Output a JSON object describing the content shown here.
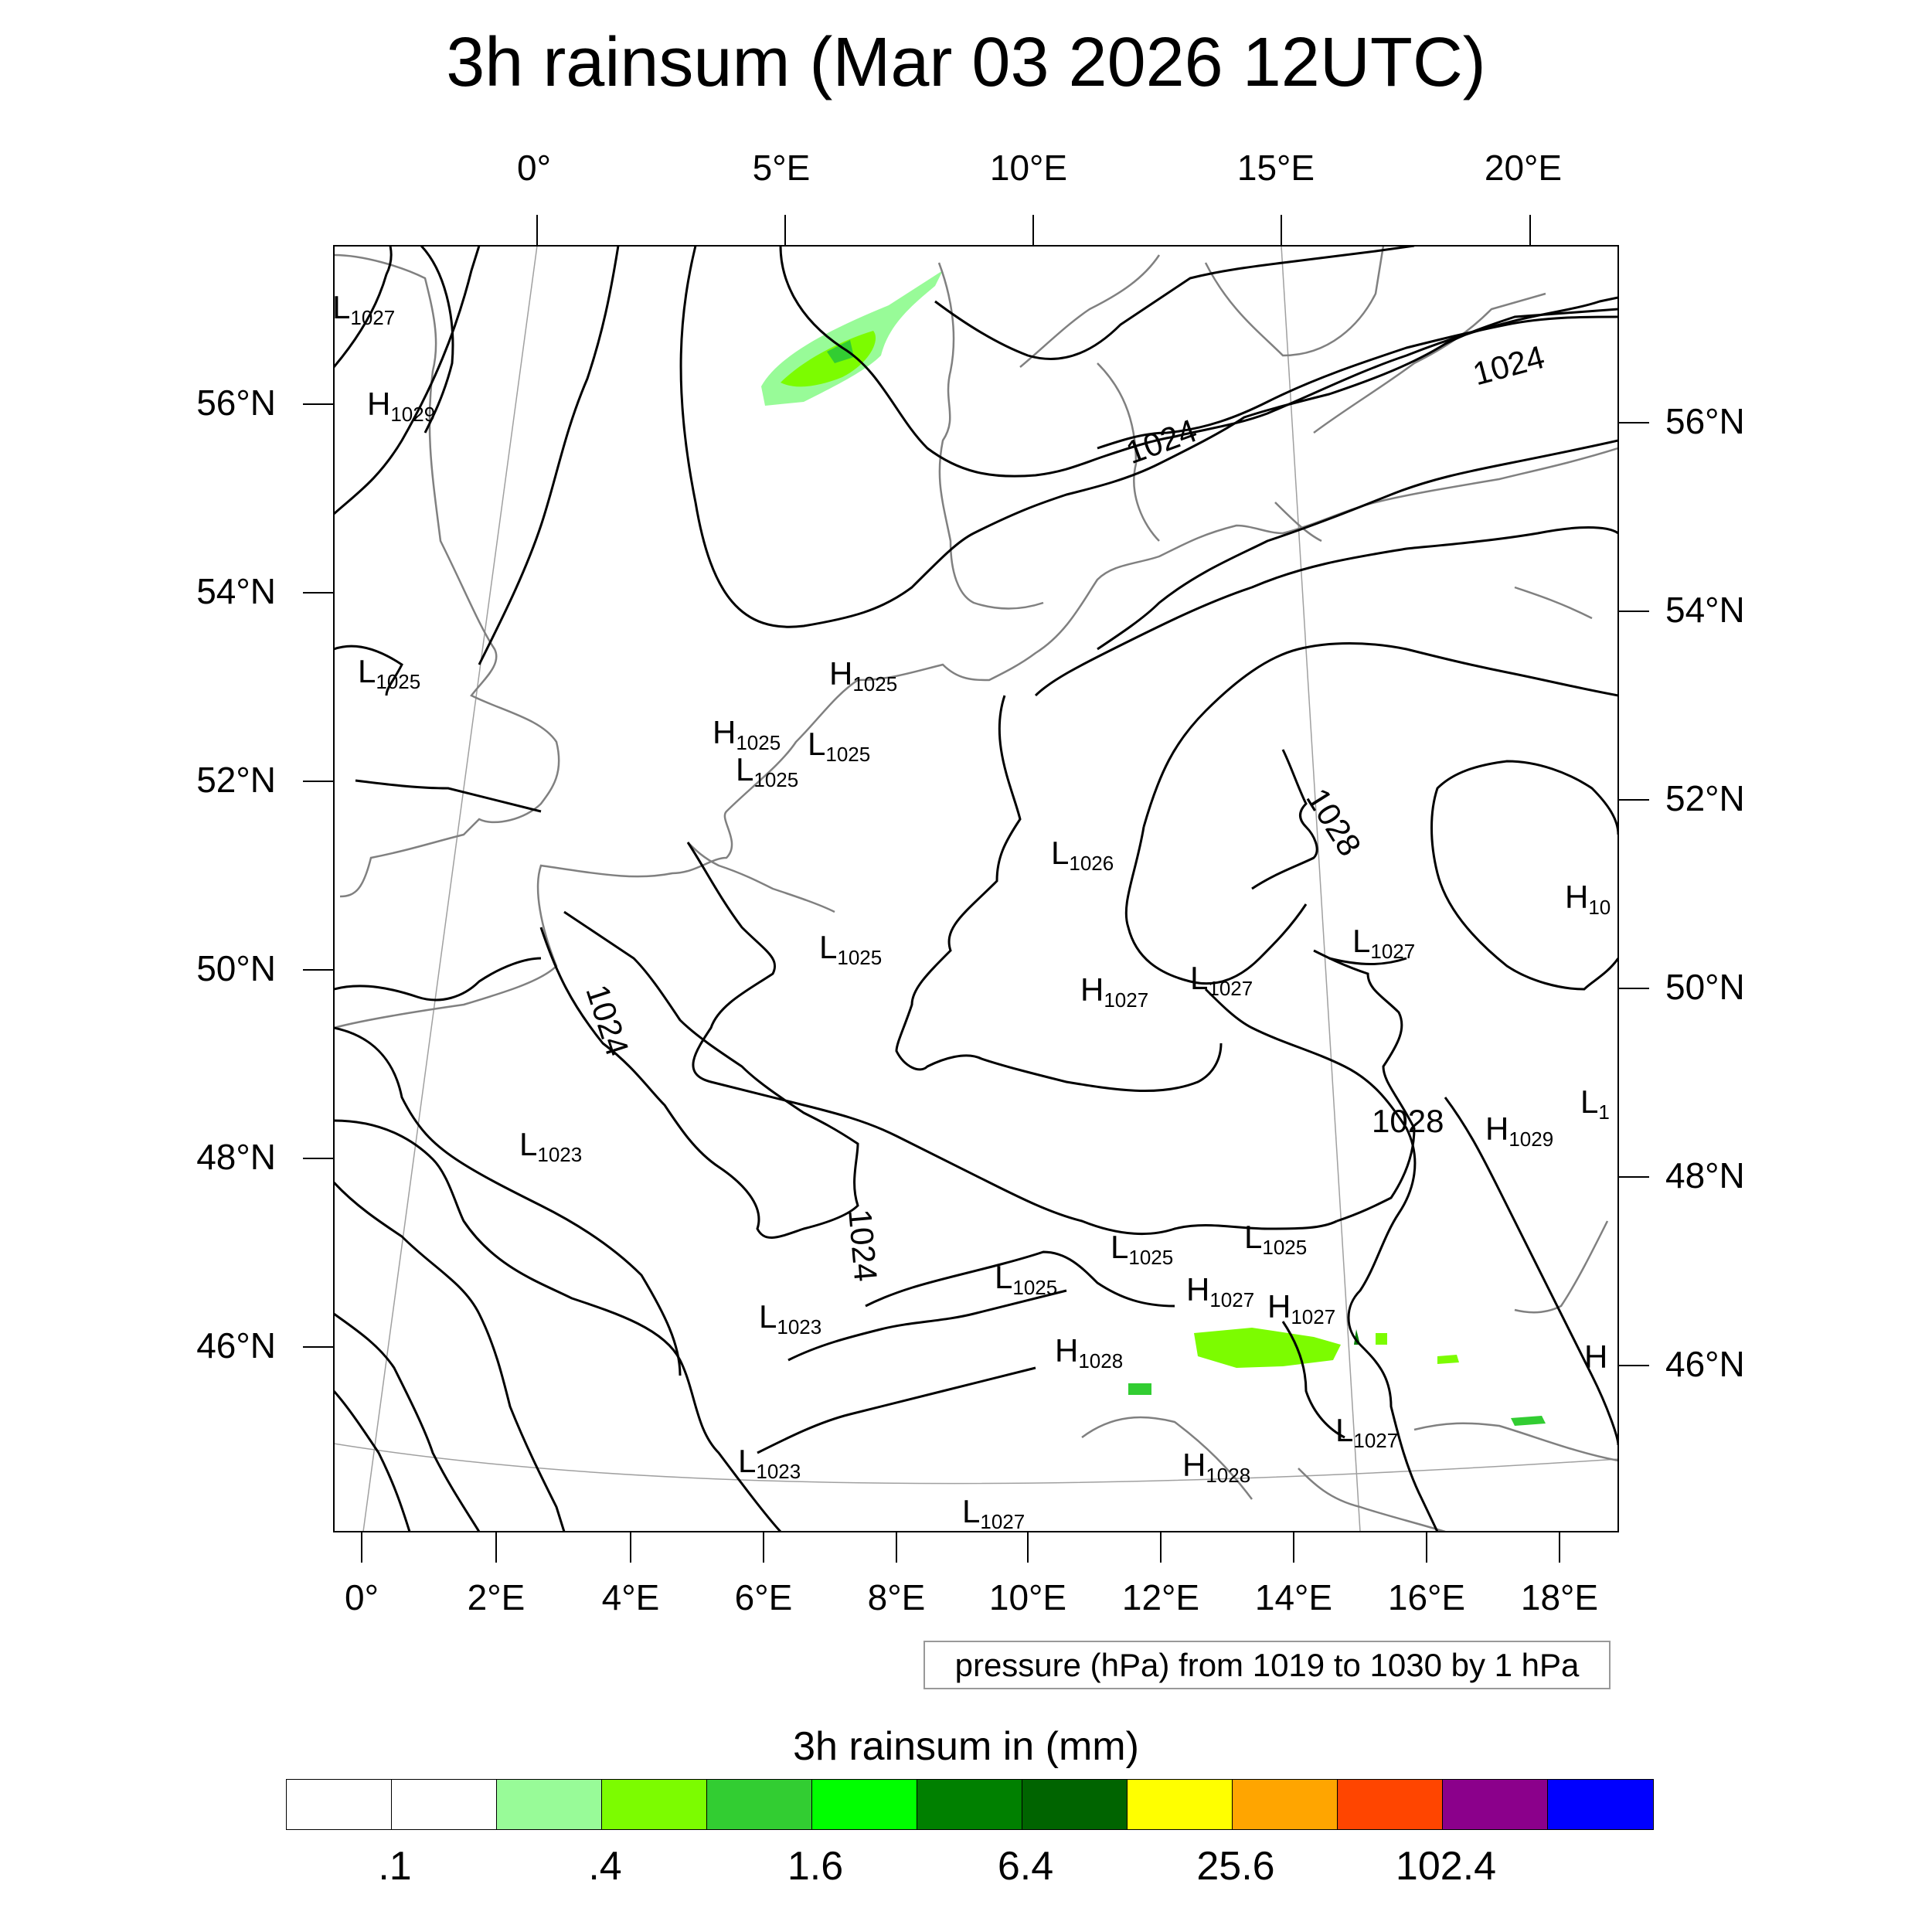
{
  "title": "3h rainsum (Mar 03 2026 12UTC)",
  "map": {
    "top_lon_labels": [
      "0°",
      "5°E",
      "10°E",
      "15°E",
      "20°E"
    ],
    "bottom_lon_labels": [
      "0°",
      "2°E",
      "4°E",
      "6°E",
      "8°E",
      "10°E",
      "12°E",
      "14°E",
      "16°E",
      "18°E"
    ],
    "left_lat_labels": [
      "56°N",
      "54°N",
      "52°N",
      "50°N",
      "48°N",
      "46°N"
    ],
    "right_lat_labels": [
      "56°N",
      "54°N",
      "52°N",
      "50°N",
      "48°N",
      "46°N"
    ],
    "isobar_labels": [
      "1024",
      "1024",
      "1024",
      "1024",
      "1028",
      "1028"
    ],
    "pressure_centers": [
      {
        "type": "L",
        "value": "1027"
      },
      {
        "type": "H",
        "value": "1029"
      },
      {
        "type": "L",
        "value": "1025"
      },
      {
        "type": "H",
        "value": "1025"
      },
      {
        "type": "H",
        "value": "1025"
      },
      {
        "type": "L",
        "value": "1025"
      },
      {
        "type": "L",
        "value": "1025"
      },
      {
        "type": "L",
        "value": "1026"
      },
      {
        "type": "L",
        "value": "1025"
      },
      {
        "type": "H",
        "value": "1027"
      },
      {
        "type": "L",
        "value": "1027"
      },
      {
        "type": "L",
        "value": "1027"
      },
      {
        "type": "H",
        "value": "10"
      },
      {
        "type": "L",
        "value": "1023"
      },
      {
        "type": "H",
        "value": "1029"
      },
      {
        "type": "L",
        "value": "1"
      },
      {
        "type": "L",
        "value": "1025"
      },
      {
        "type": "L",
        "value": "1025"
      },
      {
        "type": "L",
        "value": "1025"
      },
      {
        "type": "H",
        "value": "1027"
      },
      {
        "type": "H",
        "value": "1027"
      },
      {
        "type": "L",
        "value": "1023"
      },
      {
        "type": "H",
        "value": "1028"
      },
      {
        "type": "L",
        "value": "1023"
      },
      {
        "type": "L",
        "value": "1027"
      },
      {
        "type": "H",
        "value": "1028"
      },
      {
        "type": "L",
        "value": "1027"
      },
      {
        "type": "H",
        "value": ""
      }
    ],
    "contour_info": "pressure (hPa) from 1019 to 1030 by 1 hPa",
    "colors": {
      "isobar": "#000000",
      "coastline": "#808080",
      "graticule": "#a0a0a0"
    }
  },
  "colorbar": {
    "title": "3h rainsum in (mm)",
    "colors": [
      "#ffffff",
      "#ffffff",
      "#98fb98",
      "#7cfc00",
      "#32cd32",
      "#00ff00",
      "#008000",
      "#006400",
      "#ffff00",
      "#ffa500",
      "#ff4500",
      "#8b008b",
      "#0000ff"
    ],
    "tick_labels": [
      ".1",
      ".4",
      "1.6",
      "6.4",
      "25.6",
      "102.4"
    ]
  }
}
